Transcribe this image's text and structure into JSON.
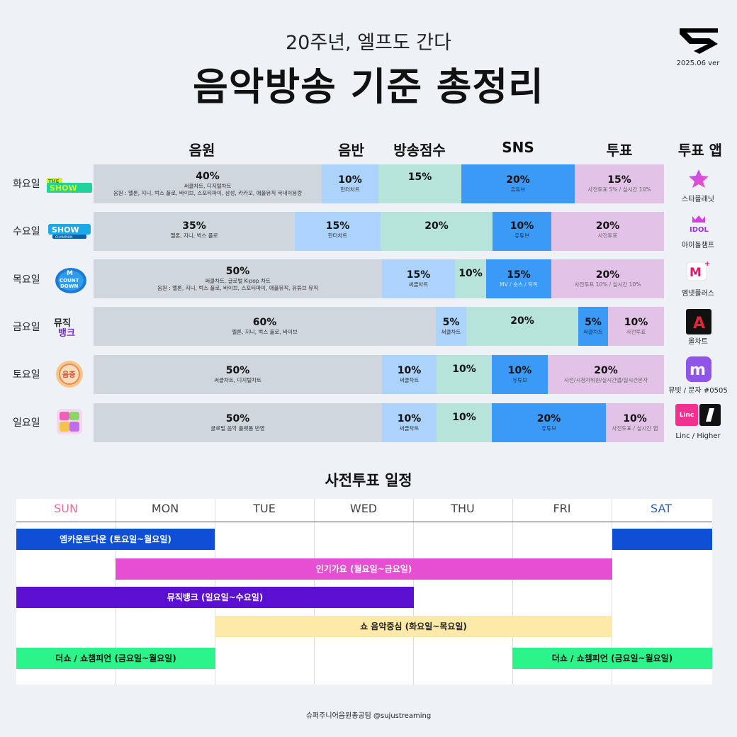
{
  "header": {
    "subtitle": "20주년, 엘프도 간다",
    "title": "음악방송 기준  총정리",
    "version": "2025.06 ver"
  },
  "columns": {
    "digital": "음원",
    "album": "음반",
    "broadcast": "방송점수",
    "sns": "SNS",
    "vote": "투표",
    "vote_app": "투표 앱"
  },
  "rows": [
    {
      "day": "화요일",
      "show_logo": "the-show-logo",
      "segments": [
        {
          "pct": "40%",
          "sub": [
            "써클차트, 디지털차트",
            "음원 : 멜론, 지니, 벅스 플로, 바이브, 스포티파이, 삼성, 카카오, 애플뮤직 국내이용량"
          ],
          "share": 40
        },
        {
          "pct": "10%",
          "sub": [
            "한터차트"
          ],
          "share": 10
        },
        {
          "pct": "15%",
          "sub": [],
          "share": 15
        },
        {
          "pct": "20%",
          "sub": [
            "유튜브"
          ],
          "share": 20
        },
        {
          "pct": "15%",
          "sub": [
            "사전투표 5% / 실시간 10%"
          ],
          "share": 15
        }
      ],
      "app": {
        "name": "스타플래닛",
        "icon": "star-planet-icon",
        "text": ""
      }
    },
    {
      "day": "수요일",
      "show_logo": "show-champion-logo",
      "segments": [
        {
          "pct": "35%",
          "sub": [
            "멜론, 지니, 벅스 플로"
          ],
          "share": 35
        },
        {
          "pct": "15%",
          "sub": [
            "한터차트"
          ],
          "share": 15
        },
        {
          "pct": "20%",
          "sub": [],
          "share": 20
        },
        {
          "pct": "10%",
          "sub": [
            "유튜브"
          ],
          "share": 10
        },
        {
          "pct": "20%",
          "sub": [
            "사전투표"
          ],
          "share": 20
        }
      ],
      "app": {
        "name": "아이돌챔프",
        "icon": "idol-champ-icon",
        "text": "IDOL"
      }
    },
    {
      "day": "목요일",
      "show_logo": "m-countdown-logo",
      "segments": [
        {
          "pct": "50%",
          "sub": [
            "써클차트, 글로벌 K-pop 차트",
            "음원 : 멜론, 지니, 벅스 플로, 바이브, 스포티파이, 애플뮤직, 유튜브 뮤직"
          ],
          "share": 50
        },
        {
          "pct": "15%",
          "sub": [
            "써클차트"
          ],
          "share": 15
        },
        {
          "pct": "10%",
          "sub": [],
          "share": 10
        },
        {
          "pct": "15%",
          "sub": [
            "MV / 숏츠 / 틱톡"
          ],
          "share": 15
        },
        {
          "pct": "20%",
          "sub": [
            "사전투표 10%  / 실시간 10%"
          ],
          "share": 20
        }
      ],
      "app": {
        "name": "엠넷플러스",
        "icon": "mnet-plus-icon",
        "text": "M"
      }
    },
    {
      "day": "금요일",
      "show_logo": "music-bank-logo",
      "segments": [
        {
          "pct": "60%",
          "sub": [
            "멜론, 지니, 벅스 플로, 바이브"
          ],
          "share": 60
        },
        {
          "pct": "5%",
          "sub": [
            "써클차트"
          ],
          "share": 5
        },
        {
          "pct": "20%",
          "sub": [],
          "share": 20
        },
        {
          "pct": "5%",
          "sub": [
            "써클차트"
          ],
          "share": 5
        },
        {
          "pct": "10%",
          "sub": [
            "사전투표"
          ],
          "share": 10
        }
      ],
      "app": {
        "name": "올차트",
        "icon": "all-chart-icon",
        "text": "A"
      }
    },
    {
      "day": "토요일",
      "show_logo": "music-core-logo",
      "segments": [
        {
          "pct": "50%",
          "sub": [
            "써클차트, 디지털차트"
          ],
          "share": 50
        },
        {
          "pct": "10%",
          "sub": [
            "써클차트"
          ],
          "share": 10
        },
        {
          "pct": "10%",
          "sub": [],
          "share": 10
        },
        {
          "pct": "10%",
          "sub": [
            "유튜브"
          ],
          "share": 10
        },
        {
          "pct": "20%",
          "sub": [
            "사전/시청자위원/실시간앱/실시간문자"
          ],
          "share": 20
        }
      ],
      "app": {
        "name": "뮤빗 / 문자 #0505",
        "icon": "mubeat-icon",
        "text": "m"
      }
    },
    {
      "day": "일요일",
      "show_logo": "inkigayo-logo",
      "segments": [
        {
          "pct": "50%",
          "sub": [
            "글로벌 음악 플랫폼 반영"
          ],
          "share": 50
        },
        {
          "pct": "10%",
          "sub": [
            "써클차트"
          ],
          "share": 10
        },
        {
          "pct": "10%",
          "sub": [],
          "share": 10
        },
        {
          "pct": "20%",
          "sub": [
            "유튜브"
          ],
          "share": 20
        },
        {
          "pct": "10%",
          "sub": [
            "사전투표 / 실시간 앱"
          ],
          "share": 10
        }
      ],
      "app": {
        "name": "Linc / Higher",
        "icon": "linc-higher-icon",
        "text": "Linc"
      }
    }
  ],
  "schedule": {
    "title": "사전투표 일정",
    "days": [
      "SUN",
      "MON",
      "TUE",
      "WED",
      "THU",
      "FRI",
      "SAT"
    ],
    "bars": [
      {
        "label": "엠카운트다운 (토요일~월요일)",
        "color": "#0f4fd6"
      },
      {
        "label": "인기가요 (월요일~금요일)",
        "color": "#e64fd2"
      },
      {
        "label": "뮤직뱅크 (일요일~수요일)",
        "color": "#5b0fd0"
      },
      {
        "label": "쇼 음악중심 (화요일~목요일)",
        "color": "#fde9a8"
      },
      {
        "label": "더쇼 / 쇼챔피언 (금요일~월요일)",
        "color": "#2bf58a"
      }
    ]
  },
  "footer": "슈퍼주니어음원총공팀 @sujustreaming"
}
